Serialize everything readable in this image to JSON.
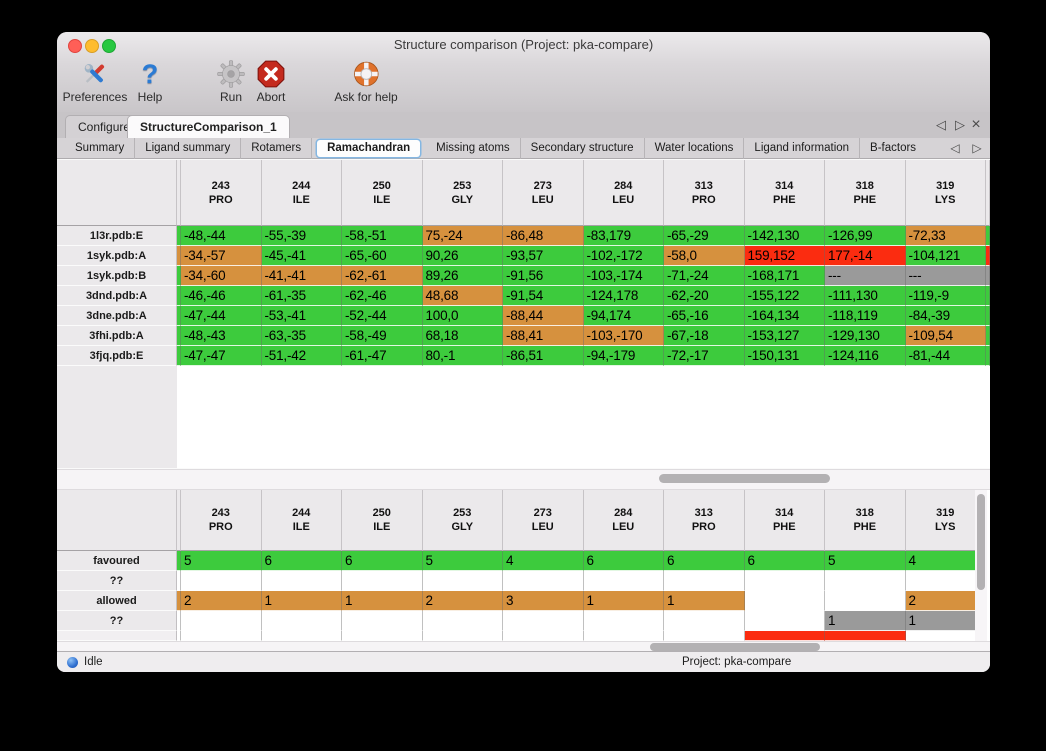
{
  "window": {
    "title": "Structure comparison (Project: pka-compare)"
  },
  "toolbar": {
    "items": [
      {
        "label": "Preferences",
        "icon": "tools-icon"
      },
      {
        "label": "Help",
        "icon": "question-icon"
      },
      {
        "label": "Run",
        "icon": "gear-icon"
      },
      {
        "label": "Abort",
        "icon": "abort-icon"
      },
      {
        "label": "Ask for help",
        "icon": "lifebuoy-icon"
      }
    ]
  },
  "tabs": {
    "main": [
      {
        "label": "Configure",
        "selected": false
      },
      {
        "label": "StructureComparison_1",
        "selected": true
      }
    ],
    "sub": [
      "Summary",
      "Ligand summary",
      "Rotamers",
      "Ramachandran",
      "Missing atoms",
      "Secondary structure",
      "Water locations",
      "Ligand information",
      "B-factors"
    ],
    "sub_selected": "Ramachandran",
    "controls": {
      "prev": "◁",
      "next": "▷",
      "close": "×"
    }
  },
  "colors": {
    "favoured": "#3dcb3d",
    "allowed": "#d6913e",
    "outlier": "#fb2c10",
    "missing": "#9a9a9a"
  },
  "columns": [
    {
      "num": "243",
      "res": "PRO"
    },
    {
      "num": "244",
      "res": "ILE"
    },
    {
      "num": "250",
      "res": "ILE"
    },
    {
      "num": "253",
      "res": "GLY"
    },
    {
      "num": "273",
      "res": "LEU"
    },
    {
      "num": "284",
      "res": "LEU"
    },
    {
      "num": "313",
      "res": "PRO"
    },
    {
      "num": "314",
      "res": "PHE"
    },
    {
      "num": "318",
      "res": "PHE"
    },
    {
      "num": "319",
      "res": "LYS"
    }
  ],
  "top_table": {
    "rows": [
      {
        "label": "1l3r.pdb:E",
        "sliver": "favoured",
        "rsliver": "favoured",
        "cells": [
          {
            "t": "-48,-44",
            "s": "favoured"
          },
          {
            "t": "-55,-39",
            "s": "favoured"
          },
          {
            "t": "-58,-51",
            "s": "favoured"
          },
          {
            "t": "75,-24",
            "s": "allowed"
          },
          {
            "t": "-86,48",
            "s": "allowed"
          },
          {
            "t": "-83,179",
            "s": "favoured"
          },
          {
            "t": "-65,-29",
            "s": "favoured"
          },
          {
            "t": "-142,130",
            "s": "favoured"
          },
          {
            "t": "-126,99",
            "s": "favoured"
          },
          {
            "t": "-72,33",
            "s": "allowed"
          }
        ]
      },
      {
        "label": "1syk.pdb:A",
        "sliver": "allowed",
        "rsliver": "outlier",
        "cells": [
          {
            "t": "-34,-57",
            "s": "allowed"
          },
          {
            "t": "-45,-41",
            "s": "favoured"
          },
          {
            "t": "-65,-60",
            "s": "favoured"
          },
          {
            "t": "90,26",
            "s": "favoured"
          },
          {
            "t": "-93,57",
            "s": "favoured"
          },
          {
            "t": "-102,-172",
            "s": "favoured"
          },
          {
            "t": "-58,0",
            "s": "allowed"
          },
          {
            "t": "159,152",
            "s": "outlier"
          },
          {
            "t": "177,-14",
            "s": "outlier"
          },
          {
            "t": "-104,121",
            "s": "favoured"
          }
        ]
      },
      {
        "label": "1syk.pdb:B",
        "sliver": "favoured",
        "rsliver": "missing",
        "cells": [
          {
            "t": "-34,-60",
            "s": "allowed"
          },
          {
            "t": "-41,-41",
            "s": "allowed"
          },
          {
            "t": "-62,-61",
            "s": "allowed"
          },
          {
            "t": "89,26",
            "s": "favoured"
          },
          {
            "t": "-91,56",
            "s": "favoured"
          },
          {
            "t": "-103,-174",
            "s": "favoured"
          },
          {
            "t": "-71,-24",
            "s": "favoured"
          },
          {
            "t": "-168,171",
            "s": "favoured"
          },
          {
            "t": "---",
            "s": "missing"
          },
          {
            "t": "---",
            "s": "missing"
          }
        ]
      },
      {
        "label": "3dnd.pdb:A",
        "sliver": "favoured",
        "rsliver": "favoured",
        "cells": [
          {
            "t": "-46,-46",
            "s": "favoured"
          },
          {
            "t": "-61,-35",
            "s": "favoured"
          },
          {
            "t": "-62,-46",
            "s": "favoured"
          },
          {
            "t": "48,68",
            "s": "allowed"
          },
          {
            "t": "-91,54",
            "s": "favoured"
          },
          {
            "t": "-124,178",
            "s": "favoured"
          },
          {
            "t": "-62,-20",
            "s": "favoured"
          },
          {
            "t": "-155,122",
            "s": "favoured"
          },
          {
            "t": "-111,130",
            "s": "favoured"
          },
          {
            "t": "-119,-9",
            "s": "favoured"
          }
        ]
      },
      {
        "label": "3dne.pdb:A",
        "sliver": "favoured",
        "rsliver": "favoured",
        "cells": [
          {
            "t": "-47,-44",
            "s": "favoured"
          },
          {
            "t": "-53,-41",
            "s": "favoured"
          },
          {
            "t": "-52,-44",
            "s": "favoured"
          },
          {
            "t": "100,0",
            "s": "favoured"
          },
          {
            "t": "-88,44",
            "s": "allowed"
          },
          {
            "t": "-94,174",
            "s": "favoured"
          },
          {
            "t": "-65,-16",
            "s": "favoured"
          },
          {
            "t": "-164,134",
            "s": "favoured"
          },
          {
            "t": "-118,119",
            "s": "favoured"
          },
          {
            "t": "-84,-39",
            "s": "favoured"
          }
        ]
      },
      {
        "label": "3fhi.pdb:A",
        "sliver": "favoured",
        "rsliver": "favoured",
        "cells": [
          {
            "t": "-48,-43",
            "s": "favoured"
          },
          {
            "t": "-63,-35",
            "s": "favoured"
          },
          {
            "t": "-58,-49",
            "s": "favoured"
          },
          {
            "t": "68,18",
            "s": "favoured"
          },
          {
            "t": "-88,41",
            "s": "allowed"
          },
          {
            "t": "-103,-170",
            "s": "allowed"
          },
          {
            "t": "-67,-18",
            "s": "favoured"
          },
          {
            "t": "-153,127",
            "s": "favoured"
          },
          {
            "t": "-129,130",
            "s": "favoured"
          },
          {
            "t": "-109,54",
            "s": "allowed"
          }
        ]
      },
      {
        "label": "3fjq.pdb:E",
        "sliver": "favoured",
        "rsliver": "favoured",
        "cells": [
          {
            "t": "-47,-47",
            "s": "favoured"
          },
          {
            "t": "-51,-42",
            "s": "favoured"
          },
          {
            "t": "-61,-47",
            "s": "favoured"
          },
          {
            "t": "80,-1",
            "s": "favoured"
          },
          {
            "t": "-86,51",
            "s": "favoured"
          },
          {
            "t": "-94,-179",
            "s": "favoured"
          },
          {
            "t": "-72,-17",
            "s": "favoured"
          },
          {
            "t": "-150,131",
            "s": "favoured"
          },
          {
            "t": "-124,116",
            "s": "favoured"
          },
          {
            "t": "-81,-44",
            "s": "favoured"
          }
        ]
      }
    ]
  },
  "bottom_table": {
    "rows": [
      {
        "label": "favoured",
        "sliver": "favoured",
        "cells": [
          {
            "t": "5",
            "s": "favoured"
          },
          {
            "t": "6",
            "s": "favoured"
          },
          {
            "t": "6",
            "s": "favoured"
          },
          {
            "t": "5",
            "s": "favoured"
          },
          {
            "t": "4",
            "s": "favoured"
          },
          {
            "t": "6",
            "s": "favoured"
          },
          {
            "t": "6",
            "s": "favoured"
          },
          {
            "t": "6",
            "s": "favoured"
          },
          {
            "t": "5",
            "s": "favoured"
          },
          {
            "t": "4",
            "s": "favoured"
          }
        ]
      },
      {
        "label": "??",
        "sliver": "empty",
        "cells": [
          {
            "t": "",
            "s": "empty"
          },
          {
            "t": "",
            "s": "empty"
          },
          {
            "t": "",
            "s": "empty"
          },
          {
            "t": "",
            "s": "empty"
          },
          {
            "t": "",
            "s": "empty"
          },
          {
            "t": "",
            "s": "empty"
          },
          {
            "t": "",
            "s": "empty"
          },
          {
            "t": "",
            "s": "empty"
          },
          {
            "t": "",
            "s": "empty"
          },
          {
            "t": "",
            "s": "empty"
          }
        ]
      },
      {
        "label": "allowed",
        "sliver": "allowed",
        "cells": [
          {
            "t": "2",
            "s": "allowed"
          },
          {
            "t": "1",
            "s": "allowed"
          },
          {
            "t": "1",
            "s": "allowed"
          },
          {
            "t": "2",
            "s": "allowed"
          },
          {
            "t": "3",
            "s": "allowed"
          },
          {
            "t": "1",
            "s": "allowed"
          },
          {
            "t": "1",
            "s": "allowed"
          },
          {
            "t": "",
            "s": "empty"
          },
          {
            "t": "",
            "s": "empty"
          },
          {
            "t": "2",
            "s": "allowed"
          }
        ]
      },
      {
        "label": "??",
        "sliver": "empty",
        "cells": [
          {
            "t": "",
            "s": "empty"
          },
          {
            "t": "",
            "s": "empty"
          },
          {
            "t": "",
            "s": "empty"
          },
          {
            "t": "",
            "s": "empty"
          },
          {
            "t": "",
            "s": "empty"
          },
          {
            "t": "",
            "s": "empty"
          },
          {
            "t": "",
            "s": "empty"
          },
          {
            "t": "",
            "s": "empty"
          },
          {
            "t": "1",
            "s": "missing"
          },
          {
            "t": "1",
            "s": "missing"
          }
        ]
      }
    ],
    "partial_row": {
      "label": "",
      "sliver": "empty",
      "cells": [
        {
          "t": "",
          "s": "empty"
        },
        {
          "t": "",
          "s": "empty"
        },
        {
          "t": "",
          "s": "empty"
        },
        {
          "t": "",
          "s": "empty"
        },
        {
          "t": "",
          "s": "empty"
        },
        {
          "t": "",
          "s": "empty"
        },
        {
          "t": "",
          "s": "empty"
        },
        {
          "t": "",
          "s": "outlier"
        },
        {
          "t": "",
          "s": "outlier"
        },
        {
          "t": "",
          "s": "empty"
        }
      ]
    }
  },
  "status_bar": {
    "left": "Idle",
    "right": "Project: pka-compare"
  }
}
